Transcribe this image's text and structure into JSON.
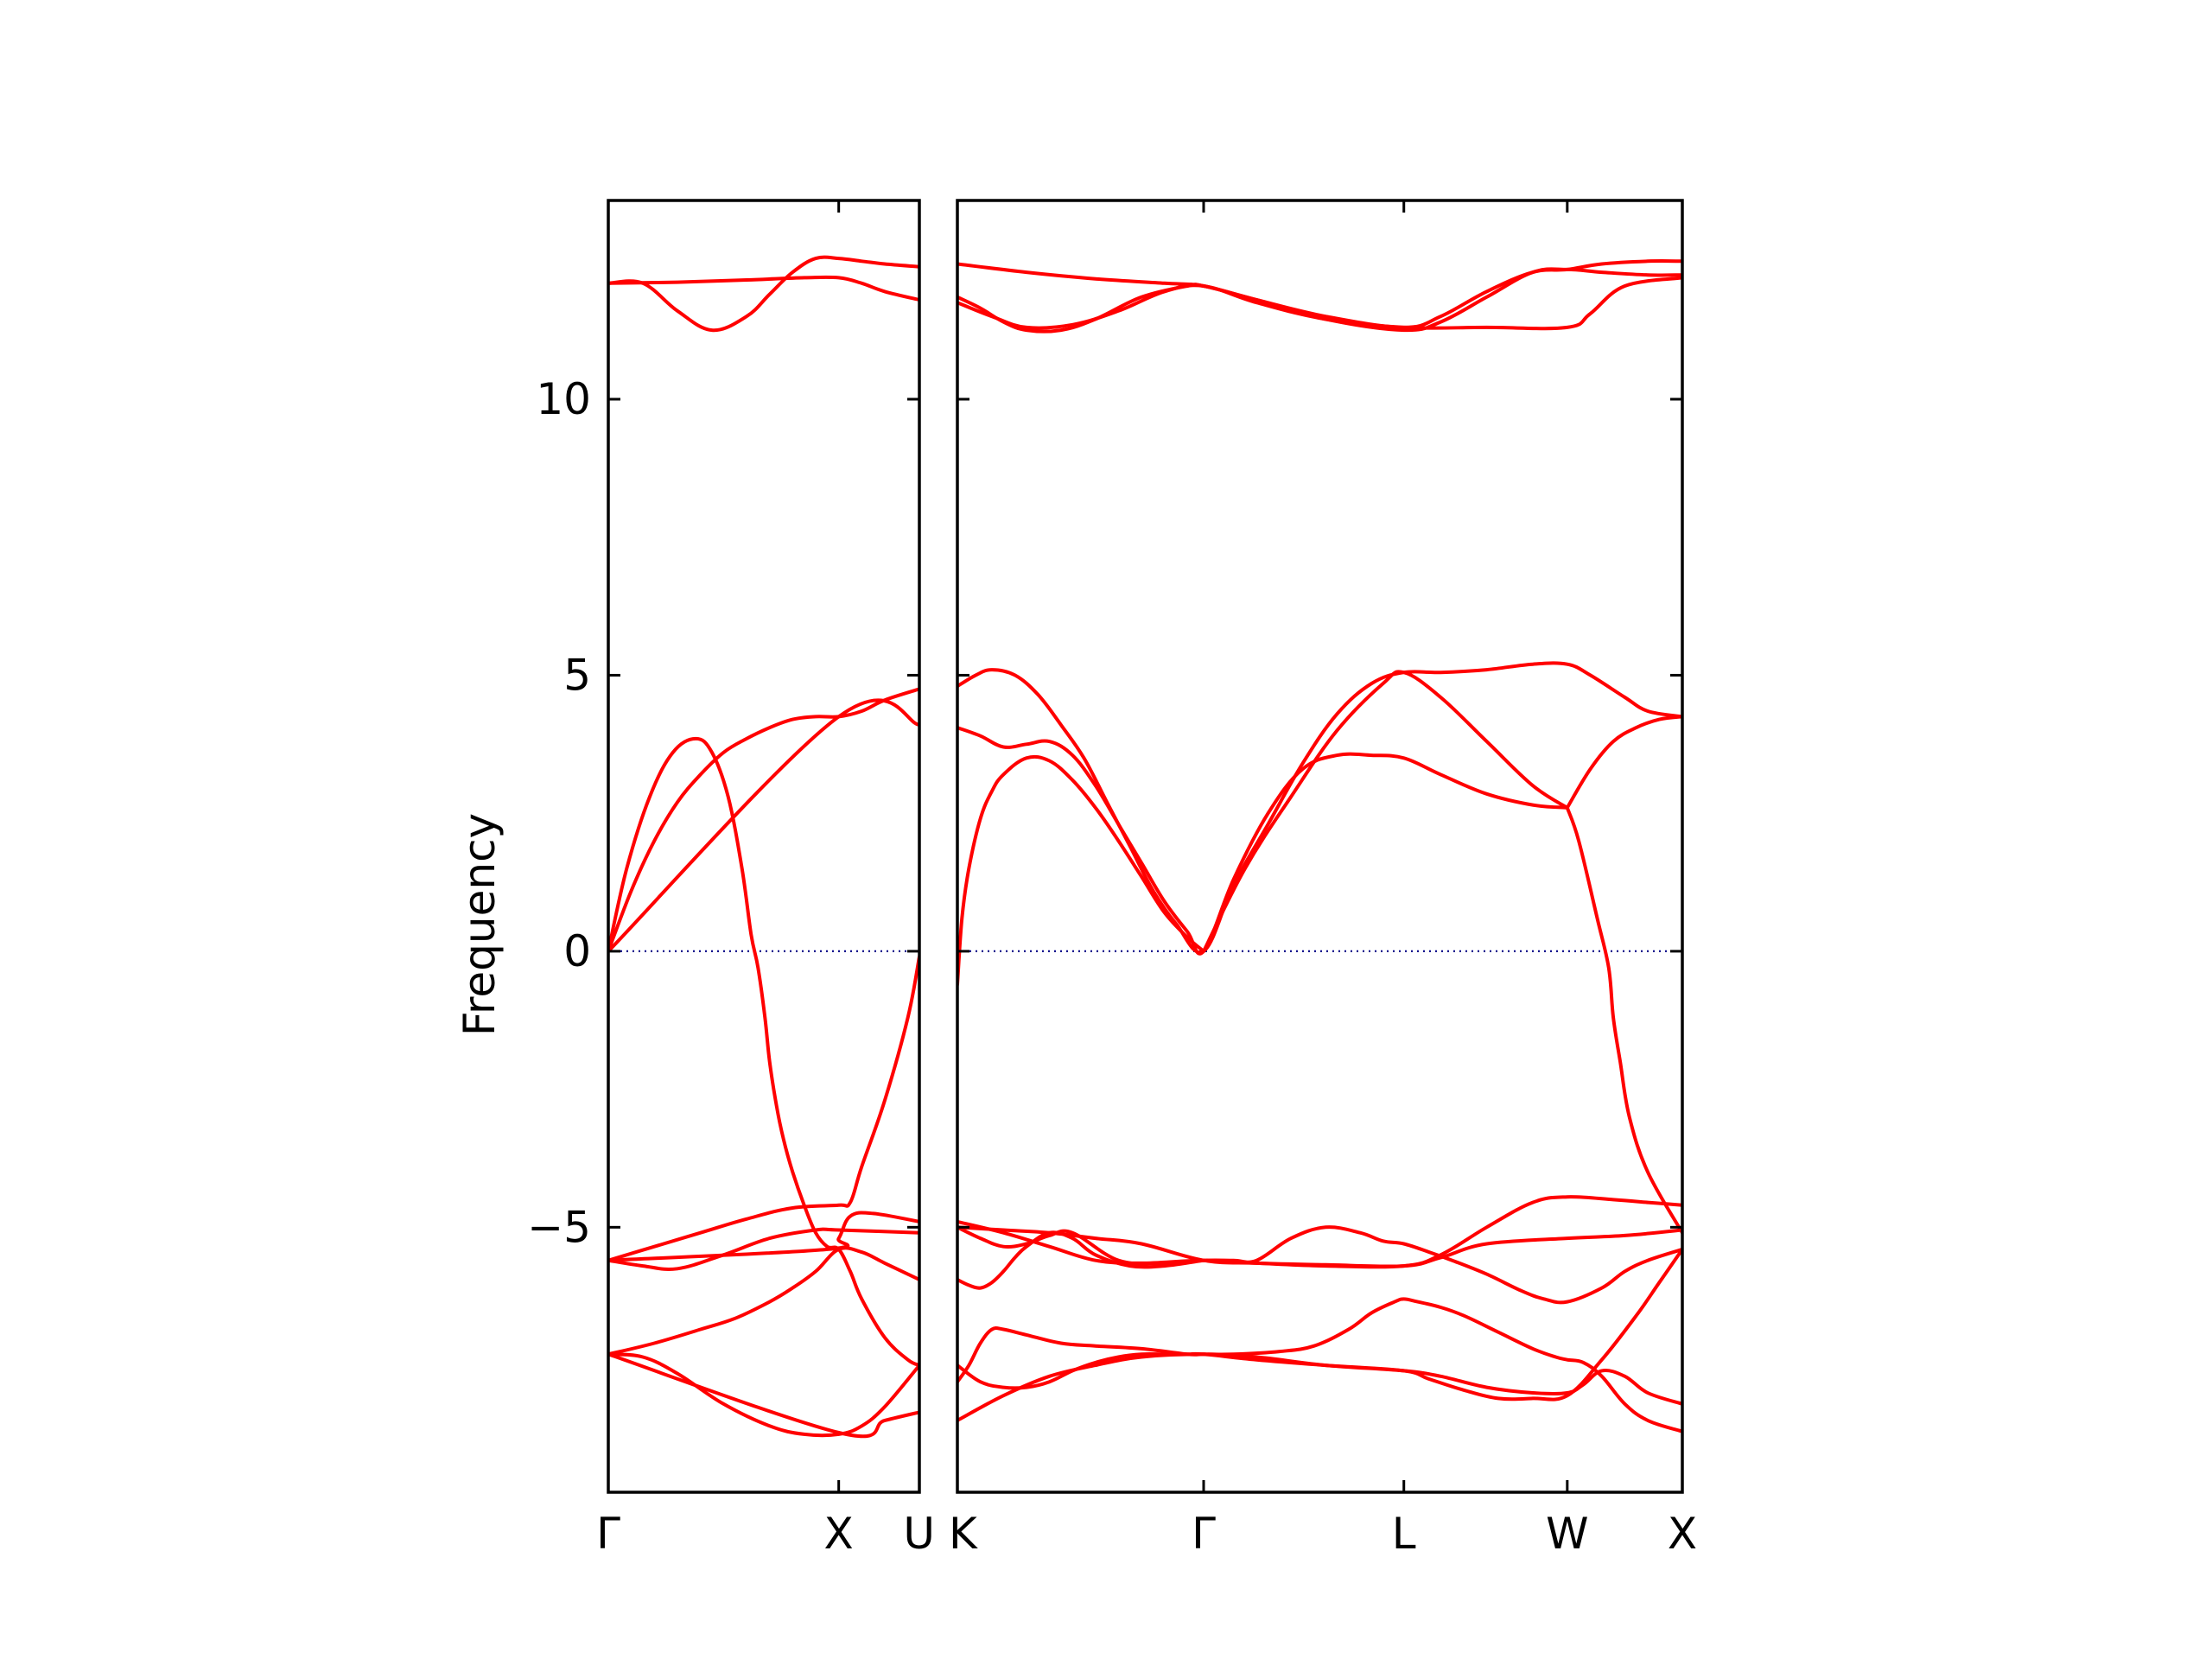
{
  "chart_data": {
    "type": "line",
    "title": "",
    "ylabel": "Frequency",
    "xlabel": "",
    "ylim": [
      -9.8,
      13.6
    ],
    "y_ticks": [
      -5,
      0,
      5,
      10
    ],
    "y_tick_labels": [
      "−5",
      "0",
      "5",
      "10"
    ],
    "grid": false,
    "legend": "none",
    "colors": {
      "band": "#ff0000",
      "zero_line": "#00008b",
      "frame": "#000000"
    },
    "panels": [
      {
        "name": "left",
        "x_range": [
          0,
          1.35
        ],
        "high_symmetry_points": [
          {
            "label": "Γ",
            "x": 0
          },
          {
            "label": "X",
            "x": 1.0
          },
          {
            "label": "U",
            "x": 1.35
          }
        ],
        "series": [
          {
            "x": [
              0,
              0.15,
              0.3,
              0.45,
              0.6,
              0.7,
              0.8,
              0.9,
              1.0,
              1.1,
              1.2,
              1.35
            ],
            "y": [
              12.1,
              12.1,
              11.6,
              11.25,
              11.5,
              11.9,
              12.3,
              12.55,
              12.55,
              12.5,
              12.45,
              12.4
            ]
          },
          {
            "x": [
              0,
              0.3,
              0.6,
              0.85,
              1.0,
              1.1,
              1.2,
              1.35
            ],
            "y": [
              12.1,
              12.12,
              12.16,
              12.2,
              12.2,
              12.1,
              11.95,
              11.8
            ]
          },
          {
            "x": [
              0,
              0.08,
              0.18,
              0.28,
              0.38,
              0.45,
              0.52,
              0.58,
              0.62,
              0.65,
              0.68,
              0.7,
              0.73,
              0.76,
              0.8,
              0.85,
              0.9,
              0.95,
              1.0,
              1.05,
              1.1,
              1.2,
              1.3,
              1.35
            ],
            "y": [
              0,
              1.5,
              2.8,
              3.6,
              3.85,
              3.6,
              2.8,
              1.5,
              0.3,
              -0.3,
              -1.2,
              -2,
              -2.8,
              -3.4,
              -4.0,
              -4.6,
              -5.1,
              -5.35,
              -5.4,
              -5.8,
              -6.3,
              -7.0,
              -7.4,
              -7.5
            ]
          },
          {
            "x": [
              0,
              0.1,
              0.2,
              0.3,
              0.4,
              0.5,
              0.6,
              0.7,
              0.8,
              0.9,
              1.0,
              1.1,
              1.2,
              1.35
            ],
            "y": [
              0,
              1.1,
              2.0,
              2.7,
              3.2,
              3.6,
              3.85,
              4.05,
              4.2,
              4.25,
              4.25,
              4.35,
              4.55,
              4.75
            ]
          },
          {
            "x": [
              0,
              1.0,
              1.35
            ],
            "y": [
              0,
              4.25,
              4.1
            ]
          },
          {
            "x": [
              0,
              0.2,
              0.4,
              0.6,
              0.8,
              1.0,
              1.05,
              1.1,
              1.2,
              1.3,
              1.35
            ],
            "y": [
              -5.6,
              -5.35,
              -5.1,
              -4.85,
              -4.65,
              -4.6,
              -4.55,
              -3.9,
              -2.7,
              -1.2,
              -0.1
            ]
          },
          {
            "x": [
              0,
              0.15,
              0.3,
              0.5,
              0.7,
              0.9,
              1.0,
              1.35
            ],
            "y": [
              -5.6,
              -5.7,
              -5.75,
              -5.5,
              -5.2,
              -5.05,
              -5.05,
              -5.1
            ]
          },
          {
            "x": [
              0,
              0.95,
              1.0,
              1.05,
              1.15,
              1.35
            ],
            "y": [
              -5.6,
              -5.4,
              -5.2,
              -4.8,
              -4.75,
              -4.9
            ]
          },
          {
            "x": [
              0,
              0.2,
              0.4,
              0.55,
              0.7,
              0.8,
              0.9,
              1.0,
              1.1,
              1.2,
              1.35
            ],
            "y": [
              -7.3,
              -7.1,
              -6.85,
              -6.65,
              -6.35,
              -6.1,
              -5.8,
              -5.4,
              -5.45,
              -5.65,
              -5.95
            ]
          },
          {
            "x": [
              0,
              0.15,
              0.3,
              0.5,
              0.7,
              0.85,
              1.0,
              1.1,
              1.2,
              1.35
            ],
            "y": [
              -7.3,
              -7.35,
              -7.65,
              -8.2,
              -8.6,
              -8.75,
              -8.75,
              -8.6,
              -8.25,
              -7.5
            ]
          },
          {
            "x": [
              0,
              1.0,
              1.2,
              1.35
            ],
            "y": [
              -7.3,
              -8.72,
              -8.5,
              -8.35
            ]
          }
        ]
      },
      {
        "name": "right",
        "x_range": [
          0,
          3.15
        ],
        "high_symmetry_points": [
          {
            "label": "K",
            "x": 0
          },
          {
            "label": "Γ",
            "x": 1.07
          },
          {
            "label": "L",
            "x": 1.94
          },
          {
            "label": "W",
            "x": 2.65
          },
          {
            "label": "X",
            "x": 3.15
          }
        ],
        "series": [
          {
            "x": [
              0,
              0.3,
              0.6,
              0.9,
              1.07,
              1.3,
              1.6,
              1.94,
              2.1,
              2.3,
              2.5,
              2.65,
              2.8,
              3.0,
              3.15
            ],
            "y": [
              12.45,
              12.3,
              12.18,
              12.1,
              12.05,
              11.8,
              11.5,
              11.3,
              11.5,
              11.95,
              12.3,
              12.35,
              12.45,
              12.5,
              12.5
            ]
          },
          {
            "x": [
              0,
              0.1,
              0.2,
              0.3,
              0.45,
              0.6,
              0.8,
              1.0,
              1.07,
              1.3,
              1.6,
              1.94,
              2.1,
              2.3,
              2.5,
              2.65,
              2.8,
              3.0,
              3.15
            ],
            "y": [
              11.85,
              11.65,
              11.4,
              11.25,
              11.25,
              11.45,
              11.85,
              12.05,
              12.05,
              11.8,
              11.45,
              11.25,
              11.4,
              11.85,
              12.3,
              12.35,
              12.3,
              12.25,
              12.25
            ]
          },
          {
            "x": [
              0,
              0.15,
              0.3,
              0.5,
              0.7,
              0.9,
              1.07,
              1.3,
              1.6,
              1.94,
              2.3,
              2.65,
              2.75,
              2.9,
              3.15
            ],
            "y": [
              11.75,
              11.5,
              11.3,
              11.35,
              11.6,
              11.95,
              12.05,
              11.75,
              11.45,
              11.3,
              11.3,
              11.3,
              11.55,
              12.05,
              12.2
            ]
          },
          {
            "x": [
              0,
              0.08,
              0.15,
              0.25,
              0.35,
              0.45,
              0.55,
              0.65,
              0.75,
              0.85,
              0.95,
              1.07,
              1.2,
              1.35,
              1.5,
              1.65,
              1.8,
              1.94,
              2.1,
              2.3,
              2.5,
              2.65,
              2.75,
              2.9,
              3.0,
              3.15
            ],
            "y": [
              4.8,
              5.0,
              5.1,
              5.0,
              4.65,
              4.1,
              3.5,
              2.7,
              1.9,
              1.1,
              0.5,
              0,
              1.2,
              2.3,
              3.4,
              4.3,
              4.85,
              5.05,
              5.05,
              5.1,
              5.2,
              5.2,
              5.0,
              4.6,
              4.35,
              4.25
            ]
          },
          {
            "x": [
              0,
              0.1,
              0.2,
              0.3,
              0.4,
              0.5,
              0.6,
              0.7,
              0.8,
              0.9,
              1.0,
              1.07,
              1.2,
              1.35,
              1.5,
              1.65,
              1.8,
              1.94,
              2.1,
              2.3,
              2.5,
              2.65
            ],
            "y": [
              4.05,
              3.9,
              3.7,
              3.75,
              3.8,
              3.55,
              3.0,
              2.3,
              1.6,
              0.9,
              0.35,
              0,
              1.3,
              2.5,
              3.3,
              3.55,
              3.55,
              3.5,
              3.2,
              2.85,
              2.65,
              2.6
            ]
          },
          {
            "x": [
              0,
              0.02,
              0.05,
              0.1,
              0.15,
              0.2,
              0.3,
              0.4,
              0.5,
              0.6,
              0.7,
              0.8,
              0.9,
              1.0,
              1.07
            ],
            "y": [
              -0.6,
              0.6,
              1.5,
              2.4,
              2.9,
              3.2,
              3.5,
              3.45,
              3.1,
              2.6,
              2.0,
              1.35,
              0.7,
              0.25,
              0
            ]
          },
          {
            "x": [
              1.07,
              1.25,
              1.45,
              1.65,
              1.85,
              1.94,
              2.1,
              2.3,
              2.5,
              2.65
            ],
            "y": [
              0,
              1.5,
              2.8,
              4.0,
              4.85,
              5.05,
              4.6,
              3.8,
              3.0,
              2.6
            ]
          },
          {
            "x": [
              2.65,
              2.7,
              2.78,
              2.83,
              2.85,
              2.88,
              2.92,
              3.0,
              3.15
            ],
            "y": [
              2.6,
              2.0,
              0.6,
              -0.3,
              -1.2,
              -2.0,
              -3.0,
              -4.0,
              -5.1
            ]
          },
          {
            "x": [
              2.65,
              2.75,
              2.85,
              2.95,
              3.05,
              3.15
            ],
            "y": [
              2.6,
              3.3,
              3.8,
              4.05,
              4.2,
              4.25
            ]
          },
          {
            "x": [
              0,
              0.2,
              0.4,
              0.6,
              0.8,
              1.07,
              1.3,
              1.6,
              1.94,
              2.1,
              2.3,
              2.5,
              2.65,
              2.85,
              3.0,
              3.15
            ],
            "y": [
              -4.9,
              -5.1,
              -5.35,
              -5.6,
              -5.65,
              -5.6,
              -5.65,
              -5.7,
              -5.7,
              -5.5,
              -5.0,
              -4.55,
              -4.45,
              -4.5,
              -4.55,
              -4.6
            ]
          },
          {
            "x": [
              0,
              0.2,
              0.4,
              0.6,
              0.8,
              1.07,
              1.3,
              1.6,
              1.94,
              2.1,
              2.3,
              2.65,
              2.9,
              3.15
            ],
            "y": [
              -5.0,
              -5.05,
              -5.1,
              -5.2,
              -5.3,
              -5.6,
              -5.65,
              -5.68,
              -5.7,
              -5.55,
              -5.3,
              -5.2,
              -5.15,
              -5.05
            ]
          },
          {
            "x": [
              0,
              0.1,
              0.2,
              0.3,
              0.4,
              0.5,
              0.7,
              0.9,
              1.07,
              1.2,
              1.3,
              1.45,
              1.6,
              1.75,
              1.85,
              1.94,
              2.05,
              2.15,
              2.3,
              2.45,
              2.55,
              2.65,
              2.8,
              2.9,
              3.0,
              3.15
            ],
            "y": [
              -5.0,
              -5.2,
              -5.35,
              -5.3,
              -5.15,
              -5.1,
              -5.6,
              -5.65,
              -5.6,
              -5.6,
              -5.6,
              -5.2,
              -5.0,
              -5.1,
              -5.25,
              -5.3,
              -5.45,
              -5.6,
              -5.85,
              -6.15,
              -6.3,
              -6.35,
              -6.1,
              -5.8,
              -5.6,
              -5.4
            ]
          },
          {
            "x": [
              0,
              0.05,
              0.1,
              0.15,
              0.2,
              0.25,
              0.3,
              0.4,
              0.5,
              0.6,
              0.75,
              0.9,
              1.07
            ],
            "y": [
              -5.95,
              -6.05,
              -6.1,
              -6.0,
              -5.8,
              -5.55,
              -5.35,
              -5.1,
              -5.2,
              -5.5,
              -5.7,
              -5.7,
              -5.6
            ]
          },
          {
            "x": [
              0,
              0.05,
              0.1,
              0.15,
              0.2,
              0.3,
              0.45,
              0.6,
              0.8,
              1.0,
              1.07,
              1.2,
              1.4,
              1.55,
              1.7,
              1.8,
              1.9,
              1.94,
              2.0,
              2.1,
              2.2,
              2.35,
              2.5,
              2.6,
              2.65,
              2.72,
              2.8,
              2.9,
              3.0,
              3.15
            ],
            "y": [
              -7.8,
              -7.5,
              -7.1,
              -6.85,
              -6.85,
              -6.95,
              -7.1,
              -7.15,
              -7.2,
              -7.3,
              -7.3,
              -7.3,
              -7.25,
              -7.15,
              -6.85,
              -6.55,
              -6.35,
              -6.3,
              -6.35,
              -6.45,
              -6.6,
              -6.9,
              -7.2,
              -7.35,
              -7.4,
              -7.45,
              -7.7,
              -8.2,
              -8.5,
              -8.7
            ]
          },
          {
            "x": [
              0,
              0.1,
              0.2,
              0.3,
              0.4,
              0.5,
              0.6,
              0.7,
              0.8,
              0.9,
              1.0,
              1.07,
              1.3,
              1.6,
              1.94,
              2.05,
              2.2,
              2.35,
              2.5,
              2.65,
              2.8,
              2.95,
              3.05,
              3.15
            ],
            "y": [
              -7.5,
              -7.8,
              -7.9,
              -7.9,
              -7.8,
              -7.6,
              -7.45,
              -7.35,
              -7.3,
              -7.3,
              -7.3,
              -7.3,
              -7.4,
              -7.5,
              -7.6,
              -7.75,
              -7.95,
              -8.1,
              -8.1,
              -8.05,
              -7.4,
              -6.6,
              -6.0,
              -5.4
            ]
          },
          {
            "x": [
              0,
              0.2,
              0.4,
              0.6,
              0.8,
              1.07,
              1.3,
              1.6,
              1.94,
              2.1,
              2.3,
              2.5,
              2.65,
              2.72,
              2.8,
              2.9,
              3.0,
              3.15
            ],
            "y": [
              -8.5,
              -8.05,
              -7.7,
              -7.5,
              -7.35,
              -7.3,
              -7.35,
              -7.5,
              -7.6,
              -7.7,
              -7.9,
              -8.0,
              -8.0,
              -7.85,
              -7.6,
              -7.7,
              -8.0,
              -8.2
            ]
          }
        ]
      }
    ]
  }
}
